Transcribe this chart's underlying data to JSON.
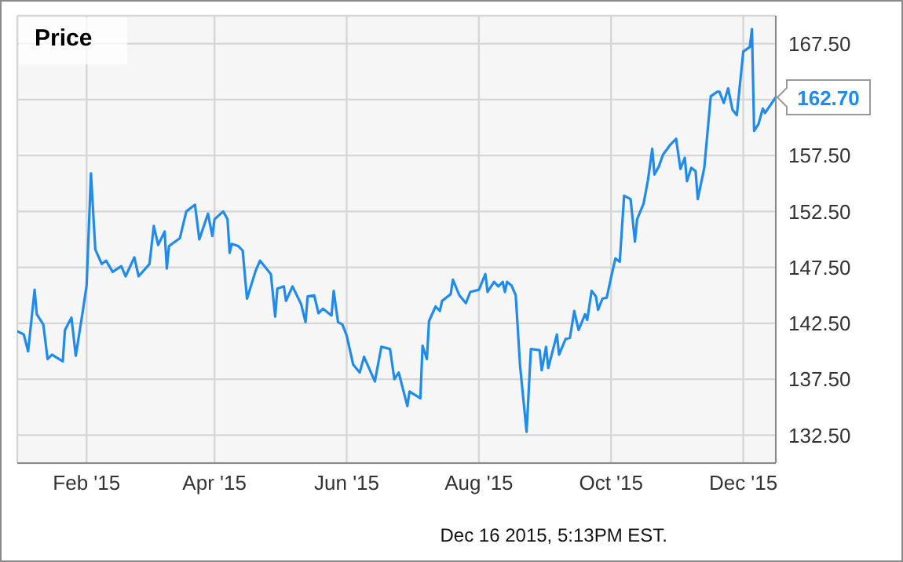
{
  "chart_data": {
    "type": "line",
    "title": "Price",
    "x": [
      "2014-12-31",
      "2015-01-03",
      "2015-01-05",
      "2015-01-08",
      "2015-01-09",
      "2015-01-12",
      "2015-01-14",
      "2015-01-16",
      "2015-01-21",
      "2015-01-22",
      "2015-01-25",
      "2015-01-27",
      "2015-01-30",
      "2015-02-01",
      "2015-02-03",
      "2015-02-05",
      "2015-02-08",
      "2015-02-10",
      "2015-02-13",
      "2015-02-17",
      "2015-02-19",
      "2015-02-23",
      "2015-02-25",
      "2015-03-02",
      "2015-03-04",
      "2015-03-06",
      "2015-03-09",
      "2015-03-10",
      "2015-03-11",
      "2015-03-16",
      "2015-03-19",
      "2015-03-23",
      "2015-03-25",
      "2015-03-29",
      "2015-03-31",
      "2015-04-01",
      "2015-04-05",
      "2015-04-07",
      "2015-04-08",
      "2015-04-09",
      "2015-04-12",
      "2015-04-14",
      "2015-04-16",
      "2015-04-20",
      "2015-04-22",
      "2015-04-27",
      "2015-04-29",
      "2015-04-30",
      "2015-05-03",
      "2015-05-04",
      "2015-05-07",
      "2015-05-11",
      "2015-05-13",
      "2015-05-14",
      "2015-05-17",
      "2015-05-19",
      "2015-05-21",
      "2015-05-25",
      "2015-05-26",
      "2015-05-28",
      "2015-05-30",
      "2015-06-01",
      "2015-06-04",
      "2015-06-07",
      "2015-06-09",
      "2015-06-14",
      "2015-06-17",
      "2015-06-21",
      "2015-06-23",
      "2015-06-25",
      "2015-06-29",
      "2015-06-30",
      "2015-07-05",
      "2015-07-06",
      "2015-07-08",
      "2015-07-09",
      "2015-07-12",
      "2015-07-14",
      "2015-07-15",
      "2015-07-19",
      "2015-07-20",
      "2015-07-23",
      "2015-07-26",
      "2015-07-28",
      "2015-08-01",
      "2015-08-04",
      "2015-08-05",
      "2015-08-08",
      "2015-08-10",
      "2015-08-12",
      "2015-08-13",
      "2015-08-14",
      "2015-08-16",
      "2015-08-18",
      "2015-08-20",
      "2015-08-23",
      "2015-08-25",
      "2015-08-29",
      "2015-08-30",
      "2015-09-01",
      "2015-09-02",
      "2015-09-06",
      "2015-09-07",
      "2015-09-10",
      "2015-09-12",
      "2015-09-14",
      "2015-09-16",
      "2015-09-19",
      "2015-09-20",
      "2015-09-22",
      "2015-09-24",
      "2015-09-25",
      "2015-09-27",
      "2015-09-29",
      "2015-10-01",
      "2015-10-03",
      "2015-10-05",
      "2015-10-07",
      "2015-10-10",
      "2015-10-12",
      "2015-10-13",
      "2015-10-16",
      "2015-10-18",
      "2015-10-20",
      "2015-10-21",
      "2015-10-23",
      "2015-10-25",
      "2015-10-27",
      "2015-10-28",
      "2015-10-31",
      "2015-11-02",
      "2015-11-04",
      "2015-11-05",
      "2015-11-07",
      "2015-11-09",
      "2015-11-10",
      "2015-11-13",
      "2015-11-16",
      "2015-11-19",
      "2015-11-20",
      "2015-11-22",
      "2015-11-24",
      "2015-11-26",
      "2015-11-28",
      "2015-12-01",
      "2015-12-04",
      "2015-12-05",
      "2015-12-06",
      "2015-12-08",
      "2015-12-10",
      "2015-12-11",
      "2015-12-16"
    ],
    "series": [
      {
        "color": "#1f8ceb",
        "values": [
          141.8,
          141.5,
          140.0,
          145.5,
          143.3,
          142.4,
          139.3,
          139.7,
          139.1,
          141.9,
          143.0,
          139.6,
          143.3,
          145.9,
          155.9,
          149.1,
          147.8,
          148.1,
          147.1,
          147.6,
          146.7,
          148.4,
          146.7,
          147.8,
          151.2,
          149.5,
          150.7,
          147.4,
          149.4,
          150.1,
          152.5,
          153.1,
          150.0,
          152.3,
          150.3,
          151.8,
          152.5,
          151.8,
          148.8,
          149.6,
          149.4,
          149.0,
          144.7,
          147.2,
          148.1,
          146.9,
          143.1,
          145.6,
          145.8,
          144.5,
          145.8,
          144.2,
          142.6,
          144.9,
          145.0,
          143.4,
          143.8,
          143.2,
          145.4,
          142.6,
          142.4,
          141.4,
          138.8,
          138.1,
          139.5,
          137.3,
          140.4,
          140.2,
          137.5,
          138.1,
          135.1,
          136.4,
          135.8,
          140.5,
          139.3,
          142.7,
          144.0,
          143.6,
          144.5,
          145.1,
          146.4,
          145.0,
          144.3,
          145.3,
          145.5,
          146.9,
          145.3,
          146.2,
          145.8,
          146.2,
          145.3,
          146.2,
          145.9,
          145.0,
          138.7,
          132.8,
          140.2,
          140.1,
          138.3,
          140.4,
          138.5,
          141.5,
          139.7,
          141.1,
          141.2,
          143.6,
          141.9,
          143.3,
          142.8,
          145.4,
          144.9,
          143.7,
          144.7,
          144.8,
          146.6,
          148.3,
          148.0,
          153.9,
          153.6,
          149.8,
          151.8,
          153.2,
          155.3,
          158.1,
          155.8,
          156.5,
          157.6,
          158.1,
          158.4,
          159.0,
          156.3,
          157.3,
          155.2,
          156.4,
          156.1,
          153.6,
          156.4,
          162.8,
          163.2,
          163.2,
          162.2,
          163.5,
          161.6,
          161.1,
          166.8,
          167.2,
          168.8,
          159.7,
          160.3,
          161.7,
          161.3,
          162.7
        ]
      }
    ],
    "xlim": [
      "2014-12-31",
      "2015-12-16"
    ],
    "xticks": [
      {
        "value": "2015-02-01",
        "label": "Feb '15"
      },
      {
        "value": "2015-04-01",
        "label": "Apr '15"
      },
      {
        "value": "2015-06-01",
        "label": "Jun '15"
      },
      {
        "value": "2015-08-01",
        "label": "Aug '15"
      },
      {
        "value": "2015-10-01",
        "label": "Oct '15"
      },
      {
        "value": "2015-12-01",
        "label": "Dec '15"
      }
    ],
    "ylim": [
      130,
      170
    ],
    "yticks": [
      {
        "value": 132.5,
        "label": "132.50"
      },
      {
        "value": 137.5,
        "label": "137.50"
      },
      {
        "value": 142.5,
        "label": "142.50"
      },
      {
        "value": 147.5,
        "label": "147.50"
      },
      {
        "value": 152.5,
        "label": "152.50"
      },
      {
        "value": 157.5,
        "label": "157.50"
      },
      {
        "value": 162.5,
        "label": null
      },
      {
        "value": 167.5,
        "label": "167.50"
      }
    ],
    "grid": true,
    "legend": false,
    "marker": "none",
    "line_style": "solid",
    "annotations": [
      {
        "text": "162.70",
        "x": "2015-12-16",
        "y": 162.7
      },
      "Dec 16 2015, 5:13PM EST."
    ]
  }
}
